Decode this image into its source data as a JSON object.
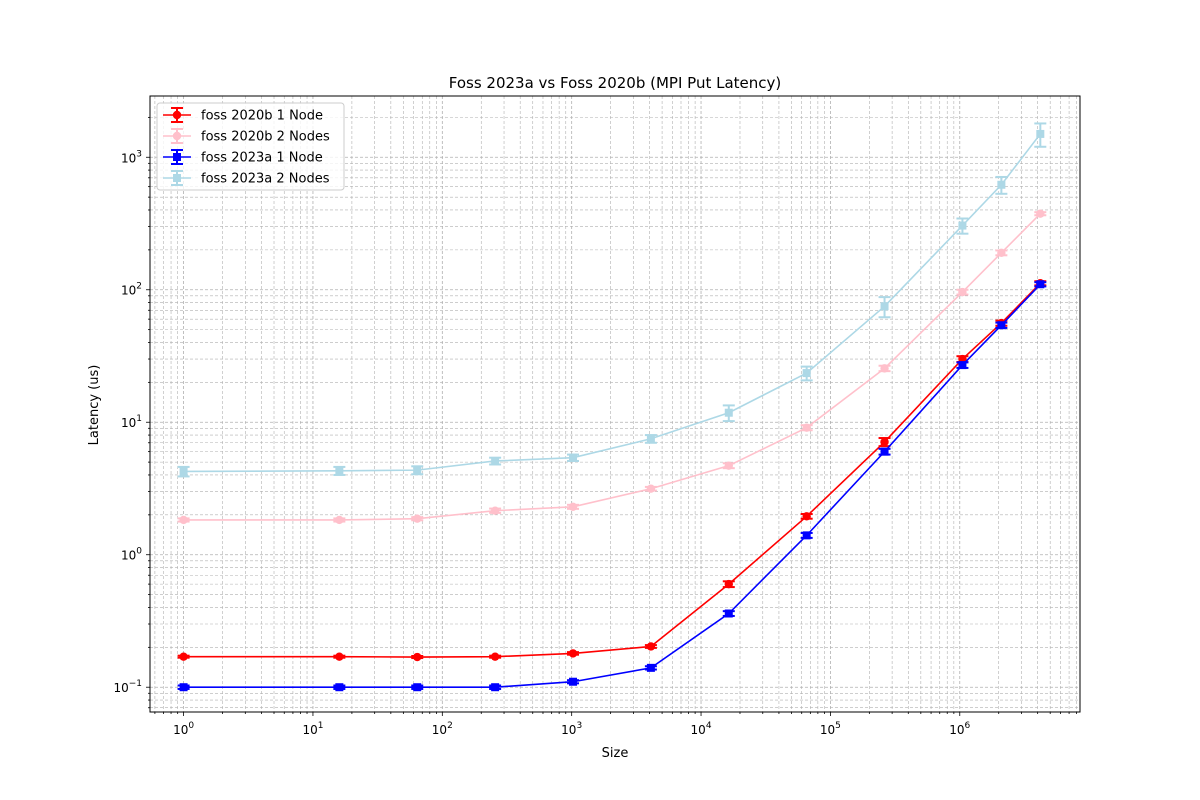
{
  "chart_data": {
    "type": "line",
    "title": "Foss 2023a vs Foss 2020b (MPI Put Latency)",
    "xlabel": "Size",
    "ylabel": "Latency (us)",
    "xscale": "log",
    "yscale": "log",
    "xlim": [
      0.55,
      8500000
    ],
    "ylim": [
      0.065,
      2900
    ],
    "x_ticks": [
      {
        "value": 1,
        "base": "10",
        "exp": "0"
      },
      {
        "value": 10,
        "base": "10",
        "exp": "1"
      },
      {
        "value": 100,
        "base": "10",
        "exp": "2"
      },
      {
        "value": 1000,
        "base": "10",
        "exp": "3"
      },
      {
        "value": 10000,
        "base": "10",
        "exp": "4"
      },
      {
        "value": 100000,
        "base": "10",
        "exp": "5"
      },
      {
        "value": 1000000,
        "base": "10",
        "exp": "6"
      }
    ],
    "y_ticks": [
      {
        "value": 0.1,
        "base": "10",
        "exp": "−1"
      },
      {
        "value": 1,
        "base": "10",
        "exp": "0"
      },
      {
        "value": 10,
        "base": "10",
        "exp": "1"
      },
      {
        "value": 100,
        "base": "10",
        "exp": "2"
      },
      {
        "value": 1000,
        "base": "10",
        "exp": "3"
      }
    ],
    "grid": true,
    "legend_position": "upper-left",
    "x": [
      1,
      16,
      64,
      256,
      1024,
      4096,
      16384,
      65536,
      262144,
      1048576,
      2097152,
      4194304
    ],
    "series": [
      {
        "name": "foss 2020b 1 Node",
        "color": "#ff0000",
        "marker": "circle",
        "values": [
          0.17,
          0.17,
          0.169,
          0.17,
          0.18,
          0.203,
          0.6,
          1.95,
          7.1,
          30,
          56,
          112
        ],
        "errors": [
          0.003,
          0.003,
          0.003,
          0.003,
          0.004,
          0.005,
          0.03,
          0.08,
          0.5,
          1.5,
          2.5,
          4
        ]
      },
      {
        "name": "foss 2020b 2 Nodes",
        "color": "#ffc0cb",
        "marker": "circle",
        "values": [
          1.83,
          1.83,
          1.87,
          2.15,
          2.3,
          3.15,
          4.7,
          9.1,
          25.5,
          96,
          190,
          375
        ],
        "errors": [
          0.05,
          0.05,
          0.05,
          0.08,
          0.08,
          0.1,
          0.2,
          0.4,
          1.2,
          4,
          8,
          10
        ]
      },
      {
        "name": "foss 2023a 1 Node",
        "color": "#0000ff",
        "marker": "square",
        "values": [
          0.1,
          0.1,
          0.1,
          0.1,
          0.11,
          0.14,
          0.36,
          1.4,
          6.0,
          27,
          54,
          110
        ],
        "errors": [
          0.003,
          0.003,
          0.003,
          0.003,
          0.003,
          0.004,
          0.015,
          0.06,
          0.3,
          1.3,
          2.5,
          4
        ]
      },
      {
        "name": "foss 2023a 2 Nodes",
        "color": "#add8e6",
        "marker": "square",
        "values": [
          4.25,
          4.3,
          4.35,
          5.1,
          5.4,
          7.5,
          11.8,
          23.5,
          75,
          305,
          620,
          1500
        ],
        "errors": [
          0.35,
          0.3,
          0.3,
          0.3,
          0.3,
          0.5,
          1.6,
          2.8,
          13,
          40,
          90,
          300
        ]
      }
    ]
  }
}
